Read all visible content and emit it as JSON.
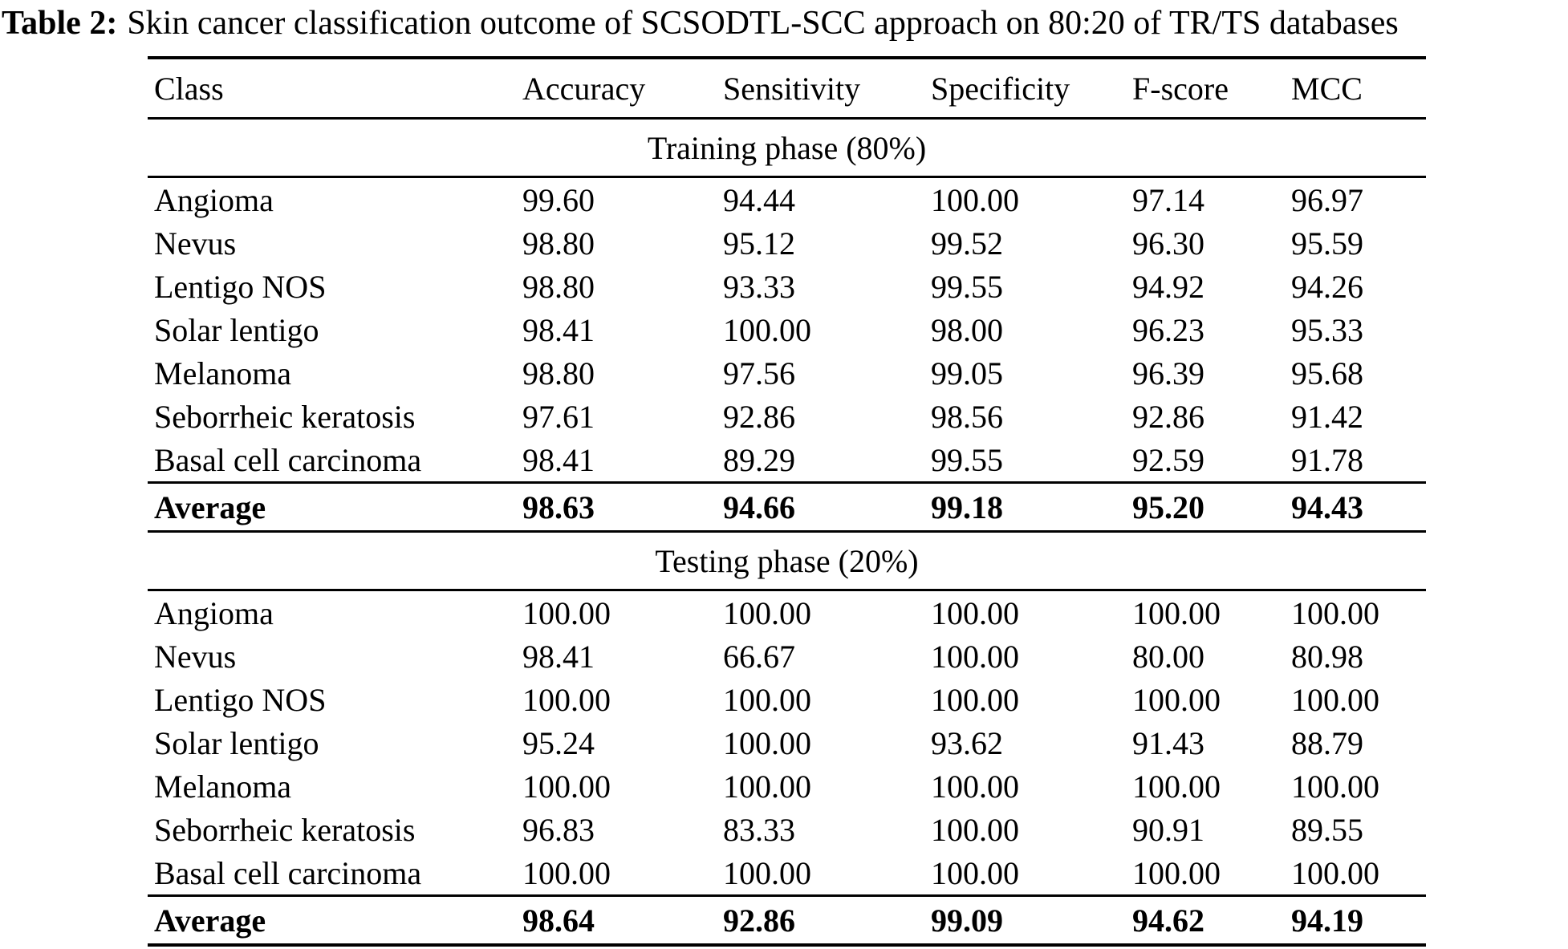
{
  "page": {
    "title_label": "Table 2:",
    "title_text": "Skin cancer classification outcome of SCSODTL-SCC approach on 80:20 of TR/TS databases"
  },
  "colors": {
    "text": "#000000",
    "background": "#ffffff",
    "rule": "#000000"
  },
  "table": {
    "columns": [
      "Class",
      "Accuracy",
      "Sensitivity",
      "Specificity",
      "F-score",
      "MCC"
    ],
    "sections": [
      {
        "header": "Training phase (80%)",
        "rows": [
          [
            "Angioma",
            "99.60",
            "94.44",
            "100.00",
            "97.14",
            "96.97"
          ],
          [
            "Nevus",
            "98.80",
            "95.12",
            "99.52",
            "96.30",
            "95.59"
          ],
          [
            "Lentigo NOS",
            "98.80",
            "93.33",
            "99.55",
            "94.92",
            "94.26"
          ],
          [
            "Solar lentigo",
            "98.41",
            "100.00",
            "98.00",
            "96.23",
            "95.33"
          ],
          [
            "Melanoma",
            "98.80",
            "97.56",
            "99.05",
            "96.39",
            "95.68"
          ],
          [
            "Seborrheic keratosis",
            "97.61",
            "92.86",
            "98.56",
            "92.86",
            "91.42"
          ],
          [
            "Basal cell carcinoma",
            "98.41",
            "89.29",
            "99.55",
            "92.59",
            "91.78"
          ]
        ],
        "average": [
          "Average",
          "98.63",
          "94.66",
          "99.18",
          "95.20",
          "94.43"
        ]
      },
      {
        "header": "Testing phase (20%)",
        "rows": [
          [
            "Angioma",
            "100.00",
            "100.00",
            "100.00",
            "100.00",
            "100.00"
          ],
          [
            "Nevus",
            "98.41",
            "66.67",
            "100.00",
            "80.00",
            "80.98"
          ],
          [
            "Lentigo NOS",
            "100.00",
            "100.00",
            "100.00",
            "100.00",
            "100.00"
          ],
          [
            "Solar lentigo",
            "95.24",
            "100.00",
            "93.62",
            "91.43",
            "88.79"
          ],
          [
            "Melanoma",
            "100.00",
            "100.00",
            "100.00",
            "100.00",
            "100.00"
          ],
          [
            "Seborrheic keratosis",
            "96.83",
            "83.33",
            "100.00",
            "90.91",
            "89.55"
          ],
          [
            "Basal cell carcinoma",
            "100.00",
            "100.00",
            "100.00",
            "100.00",
            "100.00"
          ]
        ],
        "average": [
          "Average",
          "98.64",
          "92.86",
          "99.09",
          "94.62",
          "94.19"
        ]
      }
    ]
  },
  "chart_data": {
    "type": "table",
    "title": "Table 2: Skin cancer classification outcome of SCSODTL-SCC approach on 80:20 of TR/TS databases",
    "columns": [
      "Class",
      "Accuracy",
      "Sensitivity",
      "Specificity",
      "F-score",
      "MCC"
    ],
    "sections": [
      {
        "header": "Training phase (80%)",
        "rows": [
          [
            "Angioma",
            99.6,
            94.44,
            100.0,
            97.14,
            96.97
          ],
          [
            "Nevus",
            98.8,
            95.12,
            99.52,
            96.3,
            95.59
          ],
          [
            "Lentigo NOS",
            98.8,
            93.33,
            99.55,
            94.92,
            94.26
          ],
          [
            "Solar lentigo",
            98.41,
            100.0,
            98.0,
            96.23,
            95.33
          ],
          [
            "Melanoma",
            98.8,
            97.56,
            99.05,
            96.39,
            95.68
          ],
          [
            "Seborrheic keratosis",
            97.61,
            92.86,
            98.56,
            92.86,
            91.42
          ],
          [
            "Basal cell carcinoma",
            98.41,
            89.29,
            99.55,
            92.59,
            91.78
          ],
          [
            "Average",
            98.63,
            94.66,
            99.18,
            95.2,
            94.43
          ]
        ]
      },
      {
        "header": "Testing phase (20%)",
        "rows": [
          [
            "Angioma",
            100.0,
            100.0,
            100.0,
            100.0,
            100.0
          ],
          [
            "Nevus",
            98.41,
            66.67,
            100.0,
            80.0,
            80.98
          ],
          [
            "Lentigo NOS",
            100.0,
            100.0,
            100.0,
            100.0,
            100.0
          ],
          [
            "Solar lentigo",
            95.24,
            100.0,
            93.62,
            91.43,
            88.79
          ],
          [
            "Melanoma",
            100.0,
            100.0,
            100.0,
            100.0,
            100.0
          ],
          [
            "Seborrheic keratosis",
            96.83,
            83.33,
            100.0,
            90.91,
            89.55
          ],
          [
            "Basal cell carcinoma",
            100.0,
            100.0,
            100.0,
            100.0,
            100.0
          ],
          [
            "Average",
            98.64,
            92.86,
            99.09,
            94.62,
            94.19
          ]
        ]
      }
    ]
  }
}
